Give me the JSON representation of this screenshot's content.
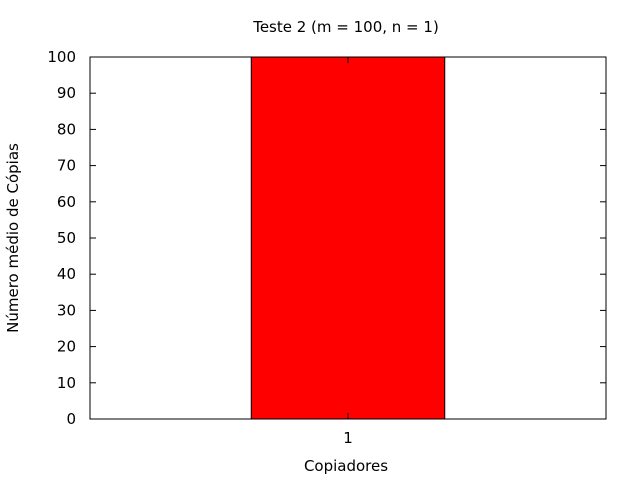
{
  "chart_data": {
    "type": "bar",
    "title": "Teste 2 (m = 100, n = 1)",
    "xlabel": "Copiadores",
    "ylabel": "Número médio de Cópias",
    "categories": [
      "1"
    ],
    "values": [
      100
    ],
    "ylim": [
      0,
      100
    ],
    "yticks": [
      0,
      10,
      20,
      30,
      40,
      50,
      60,
      70,
      80,
      90,
      100
    ],
    "grid": false,
    "bar_color": "#ff0000"
  }
}
